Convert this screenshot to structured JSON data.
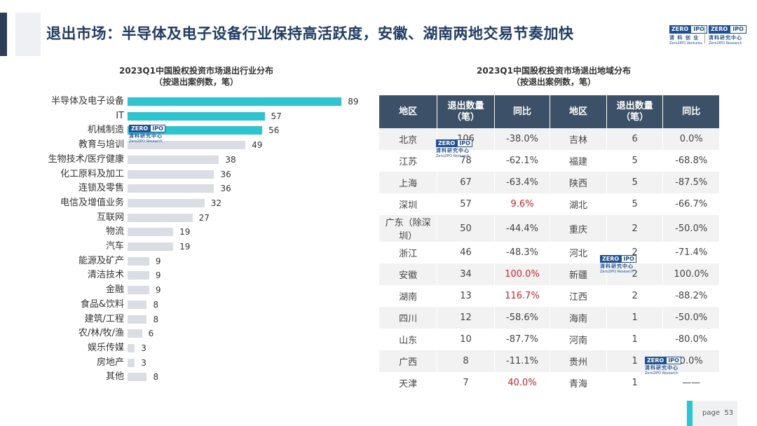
{
  "header": {
    "title": "退出市场：半导体及电子设备行业保持高活跃度，安徽、湖南两地交易节奏加快"
  },
  "logos": {
    "zero": "ZERO",
    "ipo": "IPO",
    "cn_left": "清 科 创 业",
    "en_left": "Zero2IPO Ventures",
    "cn_right": "清科研究中心",
    "en_right": "Zero2IPO Research"
  },
  "watermark": {
    "zero": "ZERO",
    "ipo": "IPO",
    "cn": "清科研究中心",
    "en": "Zero2IPO Research"
  },
  "chart_data": [
    {
      "type": "bar",
      "orientation": "horizontal",
      "title": "2023Q1中国股权投资市场退出行业分布",
      "subtitle": "（按退出案例数，笔）",
      "categories": [
        "半导体及电子设备",
        "IT",
        "机械制造",
        "教育与培训",
        "生物技术/医疗健康",
        "化工原料及加工",
        "连锁及零售",
        "电信及增值业务",
        "互联网",
        "物流",
        "汽车",
        "能源及矿产",
        "清洁技术",
        "金融",
        "食品&饮料",
        "建筑/工程",
        "农/林/牧/渔",
        "娱乐传媒",
        "房地产",
        "其他"
      ],
      "values": [
        89,
        57,
        56,
        49,
        38,
        36,
        36,
        32,
        27,
        19,
        19,
        9,
        9,
        9,
        8,
        8,
        6,
        3,
        3,
        8
      ],
      "highlight_count": 3,
      "colors": {
        "highlight": "#2bc4d1",
        "normal": "#dadde3"
      },
      "xlim": [
        0,
        100
      ],
      "grid": false,
      "legend": "none"
    },
    {
      "type": "table",
      "title": "2023Q1中国股权投资市场退出地域分布",
      "subtitle": "（按退出案例数，笔）",
      "columns": [
        "地区",
        "退出数量（笔）",
        "同比",
        "地区",
        "退出数量（笔）",
        "同比"
      ],
      "rows": [
        {
          "r1": "北京",
          "n1": "106",
          "y1": "-38.0%",
          "r2": "吉林",
          "n2": "6",
          "y2": "0.0%"
        },
        {
          "r1": "江苏",
          "n1": "78",
          "y1": "-62.1%",
          "r2": "福建",
          "n2": "5",
          "y2": "-68.8%"
        },
        {
          "r1": "上海",
          "n1": "67",
          "y1": "-63.4%",
          "r2": "陕西",
          "n2": "5",
          "y2": "-87.5%"
        },
        {
          "r1": "深圳",
          "n1": "57",
          "y1": "9.6%",
          "r2": "湖北",
          "n2": "5",
          "y2": "-66.7%"
        },
        {
          "r1": "广东（除深圳）",
          "n1": "50",
          "y1": "-44.4%",
          "r2": "重庆",
          "n2": "2",
          "y2": "-50.0%"
        },
        {
          "r1": "浙江",
          "n1": "46",
          "y1": "-48.3%",
          "r2": "河北",
          "n2": "2",
          "y2": "-71.4%"
        },
        {
          "r1": "安徽",
          "n1": "34",
          "y1": "100.0%",
          "r2": "新疆",
          "n2": "2",
          "y2": "100.0%"
        },
        {
          "r1": "湖南",
          "n1": "13",
          "y1": "116.7%",
          "r2": "江西",
          "n2": "2",
          "y2": "-88.2%"
        },
        {
          "r1": "四川",
          "n1": "12",
          "y1": "-58.6%",
          "r2": "海南",
          "n2": "1",
          "y2": "-50.0%"
        },
        {
          "r1": "山东",
          "n1": "10",
          "y1": "-87.7%",
          "r2": "河南",
          "n2": "1",
          "y2": "-80.0%"
        },
        {
          "r1": "广西",
          "n1": "8",
          "y1": "-11.1%",
          "r2": "贵州",
          "n2": "1",
          "y2": "0.0%"
        },
        {
          "r1": "天津",
          "n1": "7",
          "y1": "40.0%",
          "r2": "青海",
          "n2": "1",
          "y2": "——"
        }
      ],
      "positive_color": "#d9232d"
    }
  ],
  "footer": {
    "page_label": "page",
    "page_number": "53"
  }
}
